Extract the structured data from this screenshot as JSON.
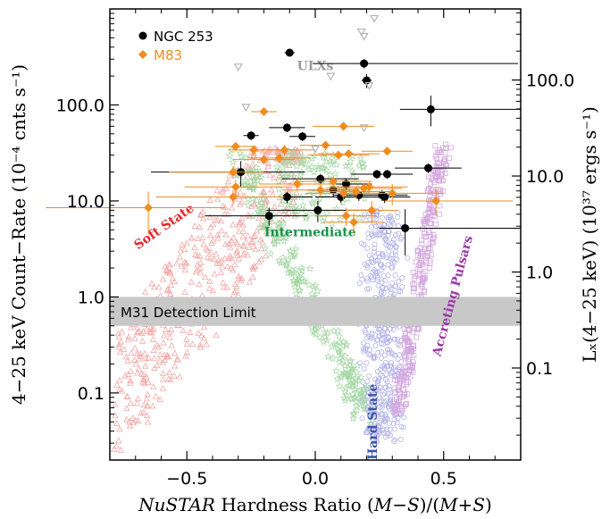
{
  "chart_data": {
    "type": "scatter",
    "xlabel_parts": [
      "NuSTAR",
      " Hardness Ratio (",
      "M",
      "−",
      "S",
      ")/(",
      "M",
      "+",
      "S",
      ")"
    ],
    "ylabel": "4−25 keV Count−Rate (10⁻⁴ cnts s⁻¹)",
    "y2label": "Lₓ(4−25 keV) (10³⁷ ergs s⁻¹)",
    "xlim": [
      -0.8,
      0.8
    ],
    "ylim": [
      0.02,
      1000
    ],
    "yscale": "log",
    "x_ticks": [
      -0.5,
      0.0,
      0.5
    ],
    "x_tick_labels": [
      "−0.5",
      "0.0",
      "0.5"
    ],
    "y_ticks": [
      0.1,
      1,
      10,
      100
    ],
    "y_tick_labels": [
      "0.1",
      "1.0",
      "10.0",
      "100.0"
    ],
    "y2_tick_values": [
      0.1,
      1,
      10,
      100
    ],
    "y2_tick_labels": [
      "0.1",
      "1.0",
      "10.0",
      "100.0"
    ],
    "y2_conversion_factor": 0.55,
    "legend": {
      "placement": "top-left",
      "entries": [
        {
          "name": "NGC 253",
          "color": "#000000",
          "marker": "circle"
        },
        {
          "name": "M83",
          "color": "#f08c1e",
          "marker": "diamond"
        }
      ]
    },
    "detection_band": {
      "label": "M31 Detection Limit",
      "y_range": [
        0.5,
        1.0
      ],
      "color": "#c8c8c8"
    },
    "region_labels": [
      {
        "text": "Soft State",
        "color": "#e8262a",
        "x": -0.58,
        "y": 5.0,
        "angle": -35
      },
      {
        "text": "Intermediate",
        "color": "#17924a",
        "x": -0.02,
        "y": 4.3,
        "angle": 0
      },
      {
        "text": "Accreting Pulsars",
        "color": "#9a3aa6",
        "x": 0.55,
        "y": 1.0,
        "angle": -75
      },
      {
        "text": "Hard State",
        "color": "#3b55a6",
        "x": 0.24,
        "y": 0.05,
        "angle": -90
      },
      {
        "text": "ULXs",
        "color": "#9a9a9a",
        "x": 0.0,
        "y": 230,
        "angle": 0
      }
    ],
    "series": [
      {
        "name": "NGC 253",
        "color": "#000000",
        "marker": "circle",
        "points": [
          {
            "x": -0.1,
            "y": 350,
            "xerr": [
              0.02,
              0.02
            ],
            "yerr": [
              25,
              25
            ]
          },
          {
            "x": 0.19,
            "y": 270,
            "xerr": [
              0.2,
              0.6
            ],
            "yerr": [
              30,
              30
            ]
          },
          {
            "x": 0.2,
            "y": 180,
            "xerr": [
              0.02,
              0.02
            ],
            "yerr": [
              30,
              30
            ]
          },
          {
            "x": 0.45,
            "y": 90,
            "xerr": [
              0.12,
              0.35
            ],
            "yerr": [
              30,
              35
            ]
          },
          {
            "x": -0.11,
            "y": 58,
            "xerr": [
              0.07,
              0.07
            ],
            "yerr": [
              6,
              6
            ]
          },
          {
            "x": -0.05,
            "y": 47,
            "xerr": [
              0.05,
              0.05
            ],
            "yerr": [
              5,
              5
            ]
          },
          {
            "x": -0.25,
            "y": 48,
            "xerr": [
              0.03,
              0.03
            ],
            "yerr": [
              5,
              5
            ]
          },
          {
            "x": 0.44,
            "y": 22,
            "xerr": [
              0.13,
              0.13
            ],
            "yerr": [
              2.5,
              2.5
            ]
          },
          {
            "x": -0.29,
            "y": 20,
            "xerr": [
              0.35,
              0.25
            ],
            "yerr": [
              6,
              6
            ]
          },
          {
            "x": 0.02,
            "y": 17,
            "xerr": [
              0.15,
              0.15
            ],
            "yerr": [
              2,
              2
            ]
          },
          {
            "x": 0.24,
            "y": 19,
            "xerr": [
              0.1,
              0.1
            ],
            "yerr": [
              2,
              2
            ]
          },
          {
            "x": 0.28,
            "y": 19,
            "xerr": [
              0.1,
              0.1
            ],
            "yerr": [
              2,
              2
            ]
          },
          {
            "x": 0.12,
            "y": 15,
            "xerr": [
              0.1,
              0.1
            ],
            "yerr": [
              2,
              2
            ]
          },
          {
            "x": 0.07,
            "y": 13,
            "xerr": [
              0.1,
              0.1
            ],
            "yerr": [
              2,
              2
            ]
          },
          {
            "x": 0.17,
            "y": 11.5,
            "xerr": [
              0.1,
              0.1
            ],
            "yerr": [
              1.5,
              1.5
            ]
          },
          {
            "x": -0.11,
            "y": 11,
            "xerr": [
              0.1,
              0.1
            ],
            "yerr": [
              1.5,
              1.5
            ]
          },
          {
            "x": 0.1,
            "y": 11,
            "xerr": [
              0.1,
              0.1
            ],
            "yerr": [
              1.5,
              1.5
            ]
          },
          {
            "x": 0.26,
            "y": 11.5,
            "xerr": [
              0.1,
              0.1
            ],
            "yerr": [
              1.5,
              1.5
            ]
          },
          {
            "x": 0.27,
            "y": 11,
            "xerr": [
              0.1,
              0.1
            ],
            "yerr": [
              1.5,
              1.5
            ]
          },
          {
            "x": 0.01,
            "y": 8,
            "xerr": [
              0.2,
              0.2
            ],
            "yerr": [
              2,
              2
            ]
          },
          {
            "x": -0.18,
            "y": 7,
            "xerr": [
              0.25,
              0.15
            ],
            "yerr": [
              1.5,
              1.5
            ]
          },
          {
            "x": 0.35,
            "y": 5.2,
            "xerr": [
              0.1,
              0.45
            ],
            "yerr": [
              2.5,
              3
            ]
          }
        ]
      },
      {
        "name": "M83",
        "color": "#f08c1e",
        "marker": "diamond",
        "points": [
          {
            "x": -0.2,
            "y": 85,
            "xerr": [
              0.05,
              0.05
            ],
            "yerr": [
              8,
              8
            ]
          },
          {
            "x": 0.11,
            "y": 60,
            "xerr": [
              0.12,
              0.12
            ],
            "yerr": [
              6,
              6
            ]
          },
          {
            "x": -0.31,
            "y": 37,
            "xerr": [
              0.08,
              0.08
            ],
            "yerr": [
              4,
              4
            ]
          },
          {
            "x": -0.24,
            "y": 34,
            "xerr": [
              0.1,
              0.1
            ],
            "yerr": [
              4,
              4
            ]
          },
          {
            "x": -0.12,
            "y": 34,
            "xerr": [
              0.12,
              0.12
            ],
            "yerr": [
              4,
              4
            ]
          },
          {
            "x": 0.04,
            "y": 38,
            "xerr": [
              0.1,
              0.1
            ],
            "yerr": [
              4,
              4
            ]
          },
          {
            "x": -0.14,
            "y": 28,
            "xerr": [
              0.12,
              0.12
            ],
            "yerr": [
              3,
              3
            ]
          },
          {
            "x": 0.09,
            "y": 30,
            "xerr": [
              0.12,
              0.12
            ],
            "yerr": [
              3,
              3
            ]
          },
          {
            "x": 0.13,
            "y": 31,
            "xerr": [
              0.12,
              0.12
            ],
            "yerr": [
              3,
              3
            ]
          },
          {
            "x": 0.28,
            "y": 33,
            "xerr": [
              0.1,
              0.1
            ],
            "yerr": [
              3,
              3
            ]
          },
          {
            "x": -0.2,
            "y": 27,
            "xerr": [
              0.12,
              0.12
            ],
            "yerr": [
              3,
              3
            ]
          },
          {
            "x": -0.32,
            "y": 20,
            "xerr": [
              0.25,
              0.12
            ],
            "yerr": [
              3,
              3
            ]
          },
          {
            "x": -0.31,
            "y": 14,
            "xerr": [
              0.2,
              0.2
            ],
            "yerr": [
              2.5,
              2.5
            ]
          },
          {
            "x": -0.32,
            "y": 11,
            "xerr": [
              0.3,
              0.2
            ],
            "yerr": [
              2,
              2
            ]
          },
          {
            "x": -0.07,
            "y": 15,
            "xerr": [
              0.15,
              0.15
            ],
            "yerr": [
              2,
              2
            ]
          },
          {
            "x": 0.02,
            "y": 13,
            "xerr": [
              0.15,
              0.15
            ],
            "yerr": [
              2,
              2
            ]
          },
          {
            "x": 0.07,
            "y": 16,
            "xerr": [
              0.15,
              0.15
            ],
            "yerr": [
              2,
              2
            ]
          },
          {
            "x": 0.11,
            "y": 12,
            "xerr": [
              0.15,
              0.15
            ],
            "yerr": [
              2,
              2
            ]
          },
          {
            "x": 0.16,
            "y": 12.5,
            "xerr": [
              0.15,
              0.15
            ],
            "yerr": [
              2,
              2
            ]
          },
          {
            "x": 0.19,
            "y": 13.5,
            "xerr": [
              0.15,
              0.15
            ],
            "yerr": [
              2,
              2
            ]
          },
          {
            "x": 0.21,
            "y": 14,
            "xerr": [
              0.15,
              0.15
            ],
            "yerr": [
              2,
              2
            ]
          },
          {
            "x": 0.3,
            "y": 12,
            "xerr": [
              0.2,
              0.2
            ],
            "yerr": [
              3,
              3
            ]
          },
          {
            "x": 0.47,
            "y": 10,
            "xerr": [
              0.2,
              0.3
            ],
            "yerr": [
              3,
              4
            ]
          },
          {
            "x": 0.12,
            "y": 7,
            "xerr": [
              0.12,
              0.12
            ],
            "yerr": [
              1.5,
              1.5
            ]
          },
          {
            "x": 0.15,
            "y": 6,
            "xerr": [
              0.12,
              0.12
            ],
            "yerr": [
              1.5,
              1.5
            ]
          },
          {
            "x": 0.22,
            "y": 8,
            "xerr": [
              0.1,
              0.1
            ],
            "yerr": [
              2,
              2
            ]
          },
          {
            "x": -0.65,
            "y": 8.5,
            "xerr": [
              0.4,
              0.3
            ],
            "yerr": [
              4,
              4
            ]
          }
        ]
      },
      {
        "name": "ULXs",
        "color": "#b4b4b4",
        "marker": "triangle-down-open",
        "points": [
          {
            "x": 0.23,
            "y": 800
          },
          {
            "x": 0.18,
            "y": 580
          },
          {
            "x": 0.19,
            "y": 520
          },
          {
            "x": -0.3,
            "y": 250
          },
          {
            "x": 0.06,
            "y": 200
          },
          {
            "x": 0.21,
            "y": 160
          },
          {
            "x": -0.27,
            "y": 95
          },
          {
            "x": 0.19,
            "y": 58
          },
          {
            "x": 0.0,
            "y": 35
          }
        ]
      }
    ],
    "background_populations": [
      {
        "name": "Soft State",
        "color": "#f2aaa8",
        "marker": "triangle-open"
      },
      {
        "name": "Intermediate",
        "color": "#a6d8a6",
        "marker": "star-open"
      },
      {
        "name": "Hard State",
        "color": "#b4b4e8",
        "marker": "circle-open"
      },
      {
        "name": "Accreting Pulsars",
        "color": "#d4a8e0",
        "marker": "square-open"
      }
    ]
  }
}
